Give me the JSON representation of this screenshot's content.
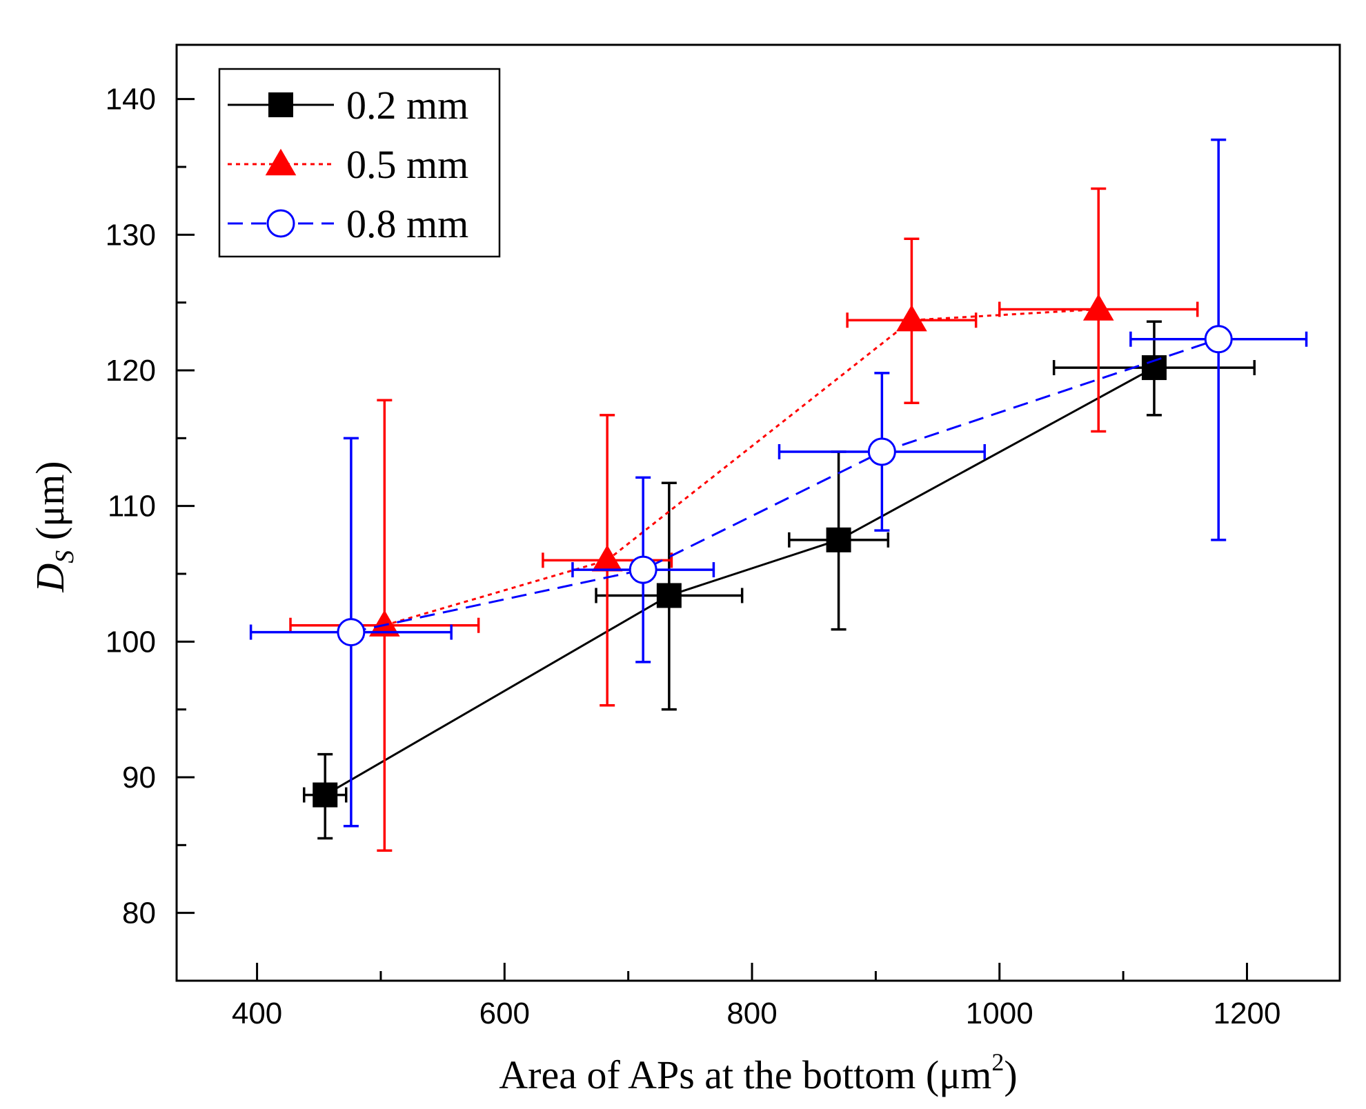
{
  "chart_data": {
    "type": "scatter",
    "title": "",
    "xlabel": "Area of APs at the bottom (μm",
    "xlabel_sup": "2",
    "xlabel_close": ")",
    "ylabel_main": "D",
    "ylabel_sub": "S",
    "ylabel_unit": " (μm)",
    "xlim": [
      335,
      1275
    ],
    "ylim": [
      75,
      144
    ],
    "xticks": [
      400,
      600,
      800,
      1000,
      1200
    ],
    "yticks": [
      80,
      90,
      100,
      110,
      120,
      130,
      140
    ],
    "legend_position": "top-left",
    "series": [
      {
        "name": "0.2 mm",
        "color": "#000000",
        "marker": "square",
        "line": "solid",
        "points": [
          {
            "x": 455,
            "y": 88.7,
            "xerr": 17,
            "yerr_low": 3.2,
            "yerr_high": 3.0
          },
          {
            "x": 733,
            "y": 103.4,
            "xerr": 59,
            "yerr_low": 8.4,
            "yerr_high": 8.3
          },
          {
            "x": 870,
            "y": 107.5,
            "xerr": 40,
            "yerr_low": 6.6,
            "yerr_high": 6.5
          },
          {
            "x": 1125,
            "y": 120.2,
            "xerr": 81,
            "yerr_low": 3.5,
            "yerr_high": 3.4
          }
        ]
      },
      {
        "name": "0.5 mm",
        "color": "#ff0000",
        "marker": "triangle",
        "line": "dotted",
        "points": [
          {
            "x": 503,
            "y": 101.2,
            "xerr": 76,
            "yerr_low": 16.6,
            "yerr_high": 16.6
          },
          {
            "x": 683,
            "y": 106.0,
            "xerr": 52,
            "yerr_low": 10.7,
            "yerr_high": 10.7
          },
          {
            "x": 929,
            "y": 123.7,
            "xerr": 52,
            "yerr_low": 6.1,
            "yerr_high": 6.0
          },
          {
            "x": 1080,
            "y": 124.5,
            "xerr": 80,
            "yerr_low": 9.0,
            "yerr_high": 8.9
          }
        ]
      },
      {
        "name": "0.8 mm",
        "color": "#0000ff",
        "marker": "circle-open",
        "line": "dashed",
        "points": [
          {
            "x": 476,
            "y": 100.7,
            "xerr": 81,
            "yerr_low": 14.3,
            "yerr_high": 14.3
          },
          {
            "x": 712,
            "y": 105.3,
            "xerr": 57,
            "yerr_low": 6.8,
            "yerr_high": 6.8
          },
          {
            "x": 905,
            "y": 114.0,
            "xerr": 83,
            "yerr_low": 5.8,
            "yerr_high": 5.8
          },
          {
            "x": 1177,
            "y": 122.3,
            "xerr": 71,
            "yerr_low": 14.8,
            "yerr_high": 14.7
          }
        ]
      }
    ]
  }
}
